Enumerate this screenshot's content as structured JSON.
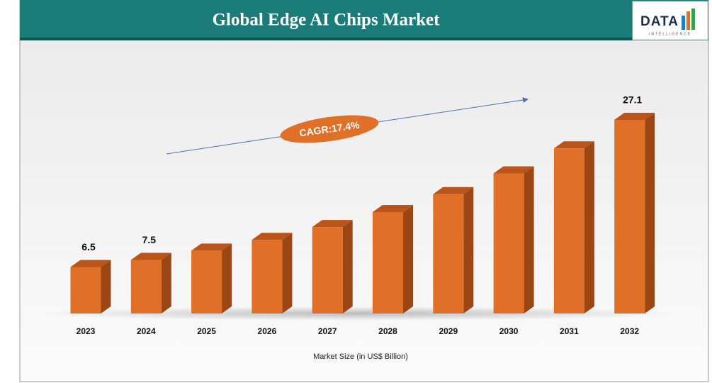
{
  "chart_data": {
    "type": "bar3d",
    "title": "Global Edge AI Chips Market",
    "logo": {
      "main": "DATA",
      "sub": "INTELLIGENCE"
    },
    "annotation": "CAGR:17.4%",
    "x_label": "Market Size (in US$ Billion)",
    "categories": [
      "2023",
      "2024",
      "2025",
      "2026",
      "2027",
      "2028",
      "2029",
      "2030",
      "2031",
      "2032"
    ],
    "values": [
      6.5,
      7.5,
      8.8,
      10.3,
      12.1,
      14.2,
      16.7,
      19.6,
      23.1,
      27.1
    ],
    "value_labels": [
      "6.5",
      "7.5",
      null,
      null,
      null,
      null,
      null,
      null,
      null,
      "27.1"
    ],
    "color": "#e07028"
  }
}
